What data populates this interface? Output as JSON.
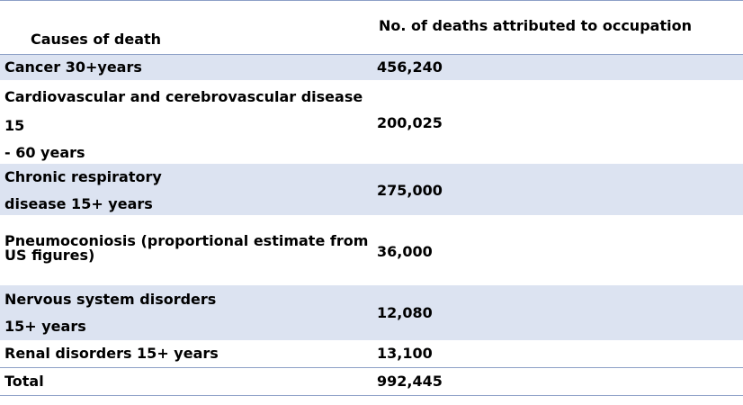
{
  "table": {
    "headers": {
      "cause": "Causes of death",
      "deaths": "No. of deaths attributed to occupation"
    },
    "rows": [
      {
        "cause_lines": [
          "Cancer 30+years"
        ],
        "deaths": "456,240"
      },
      {
        "cause_lines": [
          "Cardiovascular  and cerebrovascular  disease",
          "15",
          "- 60 years"
        ],
        "deaths": "200,025"
      },
      {
        "cause_lines": [
          "Chronic respiratory",
          "disease 15+ years"
        ],
        "deaths": "275,000"
      },
      {
        "cause_lines": [
          "Pneumoconiosis  (proportional  estimate from",
          "US figures)"
        ],
        "deaths": "36,000"
      },
      {
        "cause_lines": [
          "Nervous system disorders",
          "15+ years"
        ],
        "deaths": "12,080"
      },
      {
        "cause_lines": [
          "Renal disorders 15+ years"
        ],
        "deaths": "13,100"
      },
      {
        "cause_lines": [
          "Total"
        ],
        "deaths": "992,445"
      }
    ]
  }
}
